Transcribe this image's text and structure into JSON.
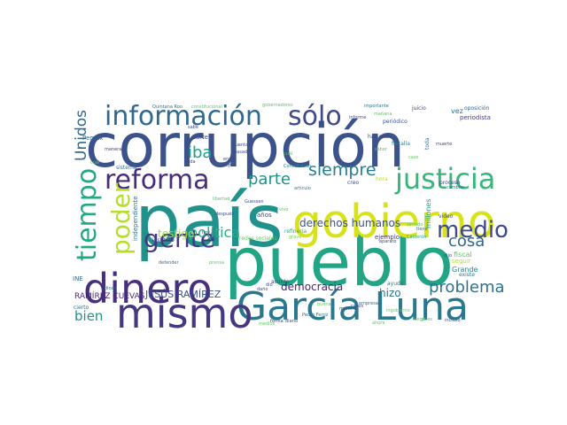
{
  "word_cloud": {
    "words": [
      {
        "text": "corrupción",
        "color": "#3b528b"
      },
      {
        "text": "país",
        "color": "#21918c"
      },
      {
        "text": "pueblo",
        "color": "#21a585"
      },
      {
        "text": "gobierno",
        "color": "#d8e219"
      },
      {
        "text": "García Luna",
        "color": "#2a788e"
      },
      {
        "text": "dinero",
        "color": "#46307e"
      },
      {
        "text": "mismo",
        "color": "#453781"
      },
      {
        "text": "información",
        "color": "#31688e"
      },
      {
        "text": "sólo",
        "color": "#3e4a89"
      },
      {
        "text": "justicia",
        "color": "#35b779"
      },
      {
        "text": "reforma",
        "color": "#472d7b"
      },
      {
        "text": "medio",
        "color": "#3e4989"
      },
      {
        "text": "gente",
        "color": "#443983"
      },
      {
        "text": "poder",
        "color": "#b5de2b"
      },
      {
        "text": "tiempo",
        "color": "#22a884"
      },
      {
        "text": "Unidos",
        "color": "#31688e"
      },
      {
        "text": "siempre",
        "color": "#277f8e"
      },
      {
        "text": "parte",
        "color": "#21918c"
      },
      {
        "text": "iba",
        "color": "#1f9e89"
      },
      {
        "text": "cosa",
        "color": "#31688e"
      },
      {
        "text": "problema",
        "color": "#2c728e"
      },
      {
        "text": "política",
        "color": "#27ad81"
      },
      {
        "text": "derechos humanos",
        "color": "#3b528b"
      },
      {
        "text": "testigo",
        "color": "#a0da39"
      },
      {
        "text": "democracia",
        "color": "#482475"
      },
      {
        "text": "bien",
        "color": "#21918c"
      },
      {
        "text": "hizo",
        "color": "#2a788e"
      },
      {
        "text": "JESÚS RAMÍREZ",
        "color": "#3b528b"
      },
      {
        "text": "RAMÍREZ CUEVAS",
        "color": "#482878"
      },
      {
        "text": "Pemex",
        "color": "#31688e"
      },
      {
        "text": "cártel",
        "color": "#3e4989"
      },
      {
        "text": "millones",
        "color": "#1fa187"
      },
      {
        "text": "independiente",
        "color": "#2c728e"
      },
      {
        "text": "Grande",
        "color": "#26828e"
      },
      {
        "text": "fiscal",
        "color": "#5ec962"
      },
      {
        "text": "seguir",
        "color": "#b5de2b"
      },
      {
        "text": "periodista",
        "color": "#443a83"
      },
      {
        "text": "vez",
        "color": "#2c728e"
      },
      {
        "text": "juicio",
        "color": "#3e4989"
      },
      {
        "text": "oposición",
        "color": "#31688e"
      },
      {
        "text": "importante",
        "color": "#2c728e"
      },
      {
        "text": "informe",
        "color": "#3e4989"
      },
      {
        "text": "periódico",
        "color": "#3b528b"
      },
      {
        "text": "fiscalía",
        "color": "#26828e"
      },
      {
        "text": "haciendo",
        "color": "#3e4989"
      },
      {
        "text": "saber",
        "color": "#5ec962"
      },
      {
        "text": "toda",
        "color": "#31688e"
      },
      {
        "text": "hora",
        "color": "#b5de2b"
      },
      {
        "text": "creo",
        "color": "#3e4989"
      },
      {
        "text": "artículo",
        "color": "#2a788e"
      },
      {
        "text": "Constitución",
        "color": "#26828e"
      },
      {
        "text": "ejemplo",
        "color": "#46307e"
      },
      {
        "text": "refinería",
        "color": "#22a884"
      },
      {
        "text": "grave",
        "color": "#7ad151"
      },
      {
        "text": "redes sociales",
        "color": "#5ec962"
      },
      {
        "text": "años",
        "color": "#3e4989"
      },
      {
        "text": "instituto",
        "color": "#3e4989"
      },
      {
        "text": "ayuda",
        "color": "#2a788e"
      },
      {
        "text": "asunto",
        "color": "#3e4989"
      },
      {
        "text": "cierto",
        "color": "#2c728e"
      },
      {
        "text": "daño",
        "color": "#3e4989"
      },
      {
        "text": "sistema",
        "color": "#2c728e"
      },
      {
        "text": "mensaje",
        "color": "#2c728e"
      },
      {
        "text": "manera",
        "color": "#3e4989"
      },
      {
        "text": "sabe",
        "color": "#3e4989"
      },
      {
        "text": "vida",
        "color": "#3e4989"
      },
      {
        "text": "INE",
        "color": "#31688e"
      },
      {
        "text": "existe",
        "color": "#2c728e"
      },
      {
        "text": "proceso",
        "color": "#3e4989"
      },
      {
        "text": "cambiar",
        "color": "#2c728e"
      },
      {
        "text": "video",
        "color": "#3e4989"
      },
      {
        "text": "mentira",
        "color": "#3e4989"
      },
      {
        "text": "incluso",
        "color": "#3e4989"
      },
      {
        "text": "muerte",
        "color": "#3e4989"
      },
      {
        "text": "Calderón",
        "color": "#22a884"
      },
      {
        "text": "después",
        "color": "#3e4989"
      },
      {
        "text": "Quintana Roo",
        "color": "#2c728e"
      },
      {
        "text": "constitucional",
        "color": "#5ec962"
      },
      {
        "text": "gobernadores",
        "color": "#5ec962"
      },
      {
        "text": "mejor",
        "color": "#3e4989"
      },
      {
        "text": "cuenta",
        "color": "#3e4989"
      },
      {
        "text": "pasado",
        "color": "#3e4989"
      },
      {
        "text": "enero",
        "color": "#3e4989"
      },
      {
        "text": "defender",
        "color": "#2c728e"
      },
      {
        "text": "prensa",
        "color": "#5ec962"
      },
      {
        "text": "dicen",
        "color": "#2c728e"
      },
      {
        "text": "casos",
        "color": "#3e4989"
      },
      {
        "text": "Guessen",
        "color": "#3e4989"
      },
      {
        "text": "Pedro Ferriz",
        "color": "#2c728e"
      },
      {
        "text": "forma",
        "color": "#3e4989"
      },
      {
        "text": "diario",
        "color": "#3e4989"
      },
      {
        "text": "ingobierno",
        "color": "#5ec962"
      },
      {
        "text": "aparato",
        "color": "#3e4989"
      },
      {
        "text": "hoy",
        "color": "#3e4989"
      },
      {
        "text": "dio",
        "color": "#3e4989"
      },
      {
        "text": "libertad",
        "color": "#5ec962"
      },
      {
        "text": "dijo",
        "color": "#3e4989"
      },
      {
        "text": "caso",
        "color": "#5ec962"
      },
      {
        "text": "cuál",
        "color": "#5ec962"
      },
      {
        "text": "mañana",
        "color": "#5ec962"
      },
      {
        "text": "empresas",
        "color": "#2c728e"
      },
      {
        "text": "sentido",
        "color": "#5ec962"
      },
      {
        "text": "tiene",
        "color": "#2c728e"
      },
      {
        "text": "vivo",
        "color": "#5ec962"
      },
      {
        "text": "cuál",
        "color": "#5ec962"
      },
      {
        "text": "luego",
        "color": "#5ec962"
      },
      {
        "text": "pues",
        "color": "#5ec962"
      },
      {
        "text": "medios",
        "color": "#5ec962"
      },
      {
        "text": "ahora",
        "color": "#5ec962"
      },
      {
        "text": "buena",
        "color": "#5ec962"
      }
    ]
  }
}
